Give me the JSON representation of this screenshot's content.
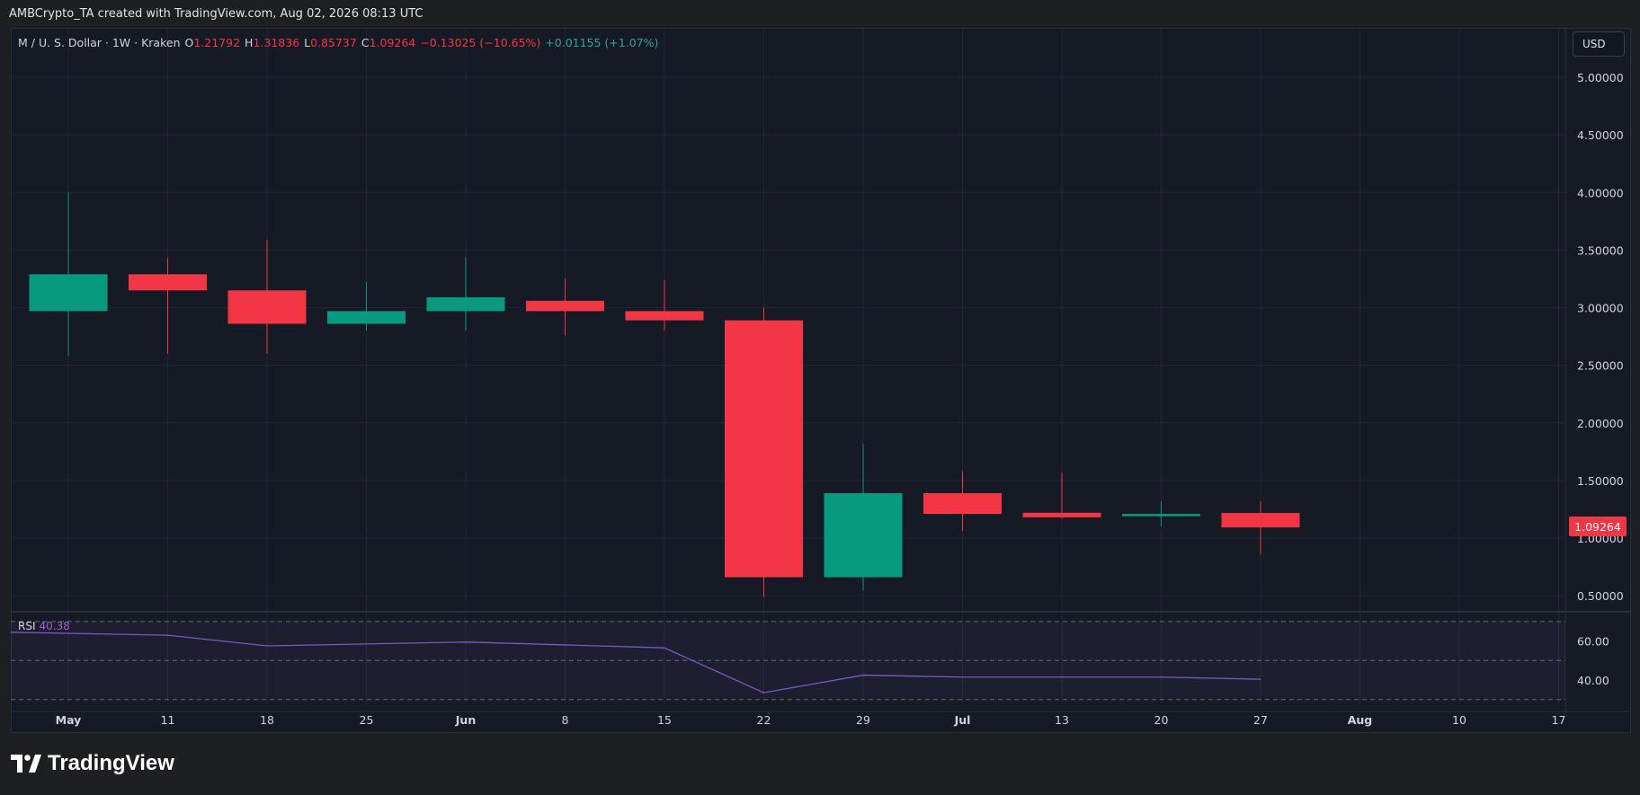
{
  "attribution": "AMBCrypto_TA created with TradingView.com, Aug 02, 2026 08:13 UTC",
  "legend": {
    "symbol": "M / U. S. Dollar · 1W · Kraken",
    "open_label": "O",
    "open_value": "1.21792",
    "high_label": "H",
    "high_value": "1.31836",
    "low_label": "L",
    "low_value": "0.85737",
    "close_label": "C",
    "close_value": "1.09264",
    "change": "−0.13025 (−10.65%)",
    "extra_change": "+0.01155 (+1.07%)"
  },
  "currency_button": "USD",
  "last_price_label": "1.09264",
  "rsi": {
    "name": "RSI",
    "value": "40.38"
  },
  "brand": "TradingView",
  "colors": {
    "up": "#089981",
    "down": "#f23645",
    "rsi_line": "#7e57c2",
    "background": "#161a25",
    "grid": "#232632"
  },
  "chart_data": {
    "type": "candlestick",
    "price_axis": {
      "ticks": [
        0.5,
        1.0,
        1.5,
        2.0,
        2.5,
        3.0,
        3.5,
        4.0,
        4.5,
        5.0
      ],
      "tick_labels": [
        "0.50000",
        "1.00000",
        "1.50000",
        "2.00000",
        "2.50000",
        "3.00000",
        "3.50000",
        "4.00000",
        "4.50000",
        "5.00000"
      ]
    },
    "time_axis": {
      "labels": [
        "May",
        "11",
        "18",
        "25",
        "Jun",
        "8",
        "15",
        "22",
        "29",
        "Jul",
        "13",
        "20",
        "27",
        "Aug",
        "10",
        "17"
      ],
      "bold": [
        true,
        false,
        false,
        false,
        true,
        false,
        false,
        false,
        false,
        true,
        false,
        false,
        false,
        true,
        false,
        false
      ]
    },
    "candles": [
      {
        "o": 2.97,
        "h": 4.0,
        "l": 2.58,
        "c": 3.29
      },
      {
        "o": 3.29,
        "h": 3.43,
        "l": 2.6,
        "c": 3.15
      },
      {
        "o": 3.15,
        "h": 3.59,
        "l": 2.6,
        "c": 2.86
      },
      {
        "o": 2.86,
        "h": 3.22,
        "l": 2.8,
        "c": 2.97
      },
      {
        "o": 2.97,
        "h": 3.44,
        "l": 2.8,
        "c": 3.09
      },
      {
        "o": 3.06,
        "h": 3.25,
        "l": 2.76,
        "c": 2.97
      },
      {
        "o": 2.97,
        "h": 3.24,
        "l": 2.8,
        "c": 2.89
      },
      {
        "o": 2.89,
        "h": 3.0,
        "l": 0.49,
        "c": 0.66
      },
      {
        "o": 0.66,
        "h": 1.82,
        "l": 0.54,
        "c": 1.39
      },
      {
        "o": 1.39,
        "h": 1.58,
        "l": 1.06,
        "c": 1.21
      },
      {
        "o": 1.22,
        "h": 1.57,
        "l": 1.17,
        "c": 1.18
      },
      {
        "o": 1.19,
        "h": 1.32,
        "l": 1.1,
        "c": 1.21
      },
      {
        "o": 1.21792,
        "h": 1.31836,
        "l": 0.85737,
        "c": 1.09264
      }
    ],
    "rsi": {
      "levels": [
        70,
        50,
        30
      ],
      "axis_ticks": [
        40,
        60
      ],
      "axis_tick_labels": [
        "40.00",
        "60.00"
      ],
      "values": [
        64.5,
        63,
        57.5,
        58.5,
        59.5,
        58,
        56.5,
        33.5,
        42.5,
        41.5,
        41.5,
        41.5,
        40.38
      ]
    }
  }
}
